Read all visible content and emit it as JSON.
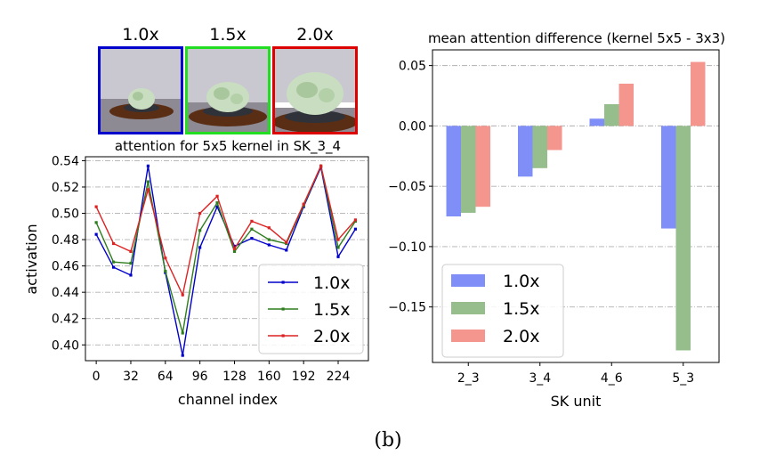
{
  "caption": "(b)",
  "thumbnails": [
    {
      "label": "1.0x",
      "border": "#0000cc"
    },
    {
      "label": "1.5x",
      "border": "#22dd22"
    },
    {
      "label": "2.0x",
      "border": "#dd0000"
    }
  ],
  "chart_data": [
    {
      "type": "line",
      "title": "attention for 5x5 kernel in SK_3_4",
      "xlabel": "channel index",
      "ylabel": "activation",
      "x": [
        0,
        16,
        32,
        48,
        64,
        80,
        96,
        112,
        128,
        144,
        160,
        176,
        192,
        208,
        224,
        240
      ],
      "x_ticks": [
        0,
        32,
        64,
        96,
        128,
        160,
        192,
        224
      ],
      "ylim": [
        0.388,
        0.543
      ],
      "y_ticks": [
        0.4,
        0.42,
        0.44,
        0.46,
        0.48,
        0.5,
        0.52,
        0.54
      ],
      "grid": "horizontal dash-dot",
      "legend": "lower-right",
      "series": [
        {
          "name": "1.0x",
          "color": "#0000cc",
          "values": [
            0.484,
            0.459,
            0.453,
            0.536,
            0.455,
            0.392,
            0.474,
            0.505,
            0.475,
            0.481,
            0.476,
            0.472,
            0.505,
            0.535,
            0.467,
            0.488
          ]
        },
        {
          "name": "1.5x",
          "color": "#2e7d1e",
          "values": [
            0.493,
            0.463,
            0.462,
            0.524,
            0.456,
            0.409,
            0.487,
            0.508,
            0.471,
            0.488,
            0.48,
            0.477,
            0.506,
            0.536,
            0.474,
            0.494
          ]
        },
        {
          "name": "2.0x",
          "color": "#dd2222",
          "values": [
            0.505,
            0.477,
            0.471,
            0.518,
            0.466,
            0.438,
            0.5,
            0.513,
            0.473,
            0.494,
            0.489,
            0.478,
            0.507,
            0.536,
            0.48,
            0.495
          ]
        }
      ]
    },
    {
      "type": "bar",
      "title": "mean attention difference (kernel 5x5 - 3x3)",
      "xlabel": "SK unit",
      "ylabel": "",
      "categories": [
        "2_3",
        "3_4",
        "4_6",
        "5_3"
      ],
      "ylim": [
        -0.196,
        0.063
      ],
      "y_ticks": [
        0.05,
        0.0,
        -0.05,
        -0.1,
        -0.15
      ],
      "y_tick_labels": [
        "0.05",
        "0.00",
        "−0.05",
        "−0.10",
        "−0.15"
      ],
      "grid": "horizontal dash-dot",
      "legend": "lower-left",
      "series": [
        {
          "name": "1.0x",
          "color": "#7f8ff7",
          "values": [
            -0.075,
            -0.042,
            0.006,
            -0.085
          ]
        },
        {
          "name": "1.5x",
          "color": "#96be8c",
          "values": [
            -0.072,
            -0.035,
            0.018,
            -0.186
          ]
        },
        {
          "name": "2.0x",
          "color": "#f5968e",
          "values": [
            -0.067,
            -0.02,
            0.035,
            0.053
          ]
        }
      ]
    }
  ]
}
